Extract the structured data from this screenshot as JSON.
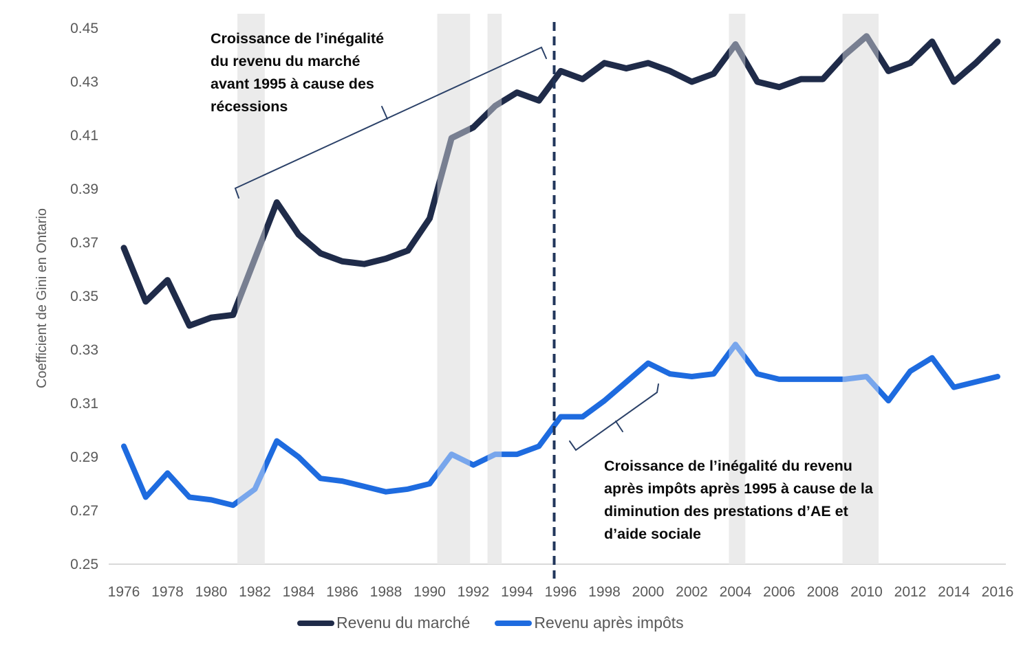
{
  "chart_data": {
    "type": "line",
    "title": "",
    "ylabel": "Coefficient de Gini en Ontario",
    "xlabel": "",
    "grid": false,
    "legend_position": "bottom",
    "ylim": [
      0.25,
      0.455
    ],
    "xlim": [
      1976,
      2016
    ],
    "y_ticks": [
      "0.25",
      "0.27",
      "0.29",
      "0.31",
      "0.33",
      "0.35",
      "0.37",
      "0.39",
      "0.41",
      "0.43",
      "0.45"
    ],
    "x_ticks": [
      1976,
      1978,
      1980,
      1982,
      1984,
      1986,
      1988,
      1990,
      1992,
      1994,
      1996,
      1998,
      2000,
      2002,
      2004,
      2006,
      2008,
      2010,
      2012,
      2014,
      2016
    ],
    "x": [
      1976,
      1977,
      1978,
      1979,
      1980,
      1981,
      1982,
      1983,
      1984,
      1985,
      1986,
      1987,
      1988,
      1989,
      1990,
      1991,
      1992,
      1993,
      1994,
      1995,
      1996,
      1997,
      1998,
      1999,
      2000,
      2001,
      2002,
      2003,
      2004,
      2005,
      2006,
      2007,
      2008,
      2009,
      2010,
      2011,
      2012,
      2013,
      2014,
      2015,
      2016
    ],
    "series": [
      {
        "name": "Revenu du marché",
        "color": "#1f2b49",
        "stroke_width": 9,
        "values": [
          0.368,
          0.348,
          0.356,
          0.339,
          0.342,
          0.343,
          0.364,
          0.385,
          0.373,
          0.366,
          0.363,
          0.362,
          0.364,
          0.367,
          0.379,
          0.409,
          0.413,
          0.421,
          0.426,
          0.423,
          0.434,
          0.431,
          0.437,
          0.435,
          0.437,
          0.434,
          0.43,
          0.433,
          0.444,
          0.43,
          0.428,
          0.431,
          0.431,
          0.44,
          0.447,
          0.434,
          0.437,
          0.445,
          0.43,
          0.437,
          0.445
        ]
      },
      {
        "name": "Revenu après impôts",
        "color": "#1e6bdf",
        "stroke_width": 8,
        "values": [
          0.294,
          0.275,
          0.284,
          0.275,
          0.274,
          0.272,
          0.278,
          0.296,
          0.29,
          0.282,
          0.281,
          0.279,
          0.277,
          0.278,
          0.28,
          0.291,
          0.287,
          0.291,
          0.291,
          0.294,
          0.305,
          0.305,
          0.311,
          0.318,
          0.325,
          0.321,
          0.32,
          0.321,
          0.332,
          0.321,
          0.319,
          0.319,
          0.319,
          0.319,
          0.32,
          0.311,
          0.322,
          0.327,
          0.316,
          0.318,
          0.32
        ]
      }
    ],
    "recession_bands": [
      [
        1981.2,
        1982.45
      ],
      [
        1990.35,
        1991.85
      ],
      [
        1992.65,
        1993.3
      ],
      [
        2003.7,
        2004.45
      ],
      [
        2008.9,
        2010.55
      ]
    ],
    "recession_band_color": "#dedede",
    "dashed_line_year": 1995.7,
    "dashed_line_color": "#21365b",
    "axis_line_color": "#d9d9d9",
    "annotations": [
      {
        "lines": [
          "Croissance de l’inégalité",
          "du revenu du marché",
          "avant 1995 à cause des",
          "récessions"
        ]
      },
      {
        "lines": [
          "Croissance de l’inégalité du revenu",
          "après impôts après 1995 à cause de la",
          "diminution des prestations d’AE et",
          "d’aide sociale"
        ]
      }
    ]
  }
}
